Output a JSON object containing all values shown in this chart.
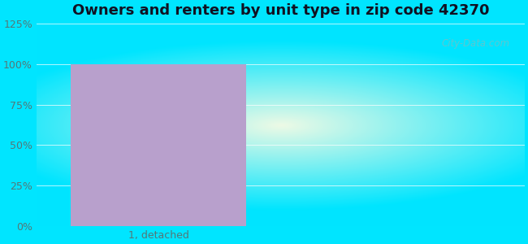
{
  "title": "Owners and renters by unit type in zip code 42370",
  "title_fontsize": 13,
  "categories": [
    "1, detached"
  ],
  "values": [
    100
  ],
  "bar_color": "#b8a0cc",
  "bar_alpha": 1.0,
  "ylim": [
    0,
    125
  ],
  "yticks": [
    0,
    25,
    50,
    75,
    100,
    125
  ],
  "ytick_labels": [
    "0%",
    "25%",
    "50%",
    "75%",
    "100%",
    "125%"
  ],
  "tick_fontsize": 9,
  "watermark": "City-Data.com",
  "fig_bg_color": "#00e5ff",
  "inner_color": [
    0.93,
    0.98,
    0.9
  ],
  "outer_color": [
    0.0,
    0.898,
    1.0
  ],
  "grid_color": "#ccddcc",
  "tick_color": "#557777"
}
